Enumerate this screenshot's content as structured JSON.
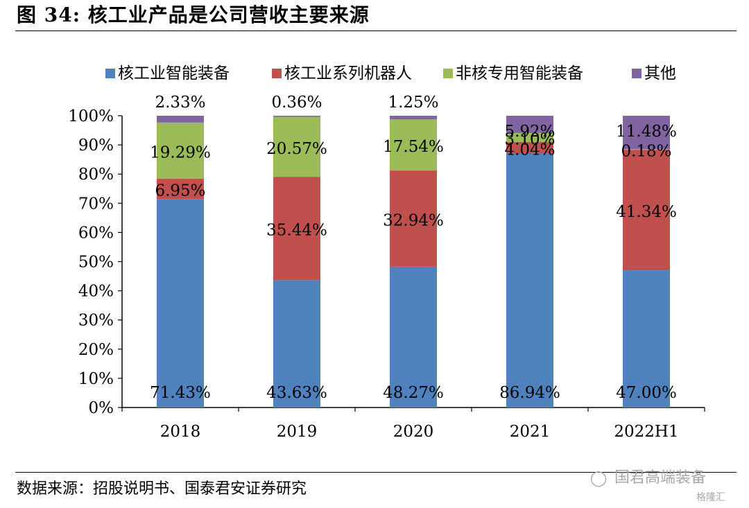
{
  "figure": {
    "title": "图 34:  核工业产品是公司营收主要来源",
    "source": "数据来源：招股说明书、国泰君安证券研究"
  },
  "watermark": {
    "icon": "wechat-icon",
    "name": "国君高端装备",
    "badge": "格隆汇"
  },
  "chart_data": {
    "type": "bar",
    "stacked": true,
    "categories": [
      "2018",
      "2019",
      "2020",
      "2021",
      "2022H1"
    ],
    "yticks": [
      "0%",
      "10%",
      "20%",
      "30%",
      "40%",
      "50%",
      "60%",
      "70%",
      "80%",
      "90%",
      "100%"
    ],
    "ylim": [
      0,
      100
    ],
    "legend_position": "top",
    "grid": false,
    "series": [
      {
        "name": "核工业智能装备",
        "color": "#4f81bd",
        "values": [
          71.43,
          43.63,
          48.27,
          86.94,
          47.0
        ],
        "labels": [
          "71.43%",
          "43.63%",
          "48.27%",
          "86.94%",
          "47.00%"
        ]
      },
      {
        "name": "核工业系列机器人",
        "color": "#c0504d",
        "values": [
          6.95,
          35.44,
          32.94,
          4.04,
          41.34
        ],
        "labels": [
          "6.95%",
          "35.44%",
          "32.94%",
          "4.04%",
          "41.34%"
        ]
      },
      {
        "name": "非核专用智能装备",
        "color": "#9bbb59",
        "values": [
          19.29,
          20.57,
          17.54,
          3.1,
          0.18
        ],
        "labels": [
          "19.29%",
          "20.57%",
          "17.54%",
          "3.10%",
          "0.18%"
        ]
      },
      {
        "name": "其他",
        "color": "#8064a2",
        "values": [
          2.33,
          0.36,
          1.25,
          5.92,
          11.48
        ],
        "labels": [
          "2.33%",
          "0.36%",
          "1.25%",
          "5.92%",
          "11.48%"
        ]
      }
    ]
  }
}
